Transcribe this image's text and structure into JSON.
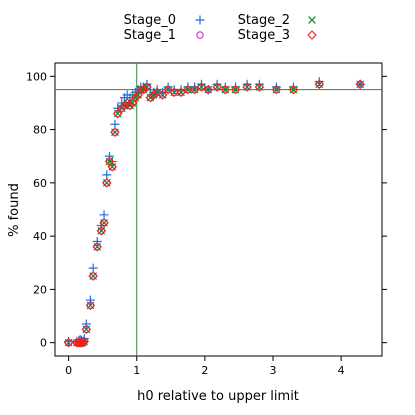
{
  "chart_data": {
    "type": "scatter",
    "xlabel": "h0 relative to upper limit",
    "ylabel": "% found",
    "xlim": [
      -0.2,
      4.6
    ],
    "ylim": [
      -5,
      105
    ],
    "x_ticks": [
      0,
      1,
      2,
      3,
      4
    ],
    "y_ticks": [
      0,
      20,
      40,
      60,
      80,
      100
    ],
    "reference_lines": {
      "x": 1,
      "y": 95,
      "color": "#2e8b2e"
    },
    "legend": {
      "placement": "top",
      "columns": 2
    },
    "x": [
      0.0,
      0.12,
      0.15,
      0.17,
      0.19,
      0.21,
      0.23,
      0.26,
      0.32,
      0.36,
      0.42,
      0.48,
      0.52,
      0.56,
      0.6,
      0.64,
      0.68,
      0.72,
      0.78,
      0.82,
      0.86,
      0.9,
      0.94,
      0.98,
      1.02,
      1.06,
      1.1,
      1.15,
      1.2,
      1.25,
      1.3,
      1.38,
      1.46,
      1.55,
      1.65,
      1.75,
      1.85,
      1.95,
      2.05,
      2.18,
      2.3,
      2.45,
      2.62,
      2.8,
      3.05,
      3.3,
      3.68,
      4.28
    ],
    "series": [
      {
        "name": "Stage_0",
        "marker": "plus",
        "color": "#1e6ee6",
        "values": [
          0.5,
          0.5,
          0.8,
          1.2,
          0.8,
          0.5,
          1.5,
          7,
          16,
          28,
          38,
          44,
          48,
          63,
          70,
          68,
          82,
          88,
          90,
          92,
          93,
          92,
          93,
          94,
          95,
          96,
          96,
          97,
          95,
          94,
          95,
          94,
          96,
          95,
          95,
          96,
          96,
          97,
          95,
          97,
          96,
          96,
          97,
          97,
          96,
          96,
          98,
          97
        ]
      },
      {
        "name": "Stage_1",
        "marker": "circle",
        "color": "#e020e0",
        "values": [
          0,
          0,
          0,
          0,
          0,
          0,
          0.5,
          5,
          14,
          25,
          36,
          42,
          45,
          60,
          68,
          66,
          79,
          86,
          88,
          89,
          90,
          89,
          90,
          92,
          93,
          95,
          95,
          96,
          92,
          93,
          94,
          93,
          95,
          94,
          94,
          95,
          95,
          96,
          95,
          96,
          95,
          95,
          96,
          96,
          95,
          95,
          97,
          97
        ]
      },
      {
        "name": "Stage_2",
        "marker": "x",
        "color": "#0f8a2f",
        "values": [
          0,
          0,
          0,
          0,
          0,
          0,
          0.5,
          5,
          14,
          25,
          36,
          42,
          45,
          60,
          68,
          66,
          79,
          86,
          88,
          89,
          90,
          89,
          90,
          92,
          93,
          95,
          95,
          96,
          92,
          93,
          94,
          93,
          95,
          94,
          94,
          95,
          95,
          96,
          95,
          96,
          95,
          95,
          96,
          96,
          95,
          95,
          97,
          97
        ]
      },
      {
        "name": "Stage_3",
        "marker": "diamond",
        "color": "#ee2020",
        "values": [
          0,
          0,
          0,
          0,
          0,
          0,
          0.5,
          5,
          14,
          25,
          36,
          42,
          45,
          60,
          68,
          66,
          79,
          86,
          88,
          89,
          90,
          89,
          90,
          92,
          93,
          95,
          95,
          96,
          92,
          93,
          94,
          93,
          95,
          94,
          94,
          95,
          95,
          96,
          95,
          96,
          95,
          95,
          96,
          96,
          95,
          95,
          97,
          97
        ]
      }
    ]
  }
}
